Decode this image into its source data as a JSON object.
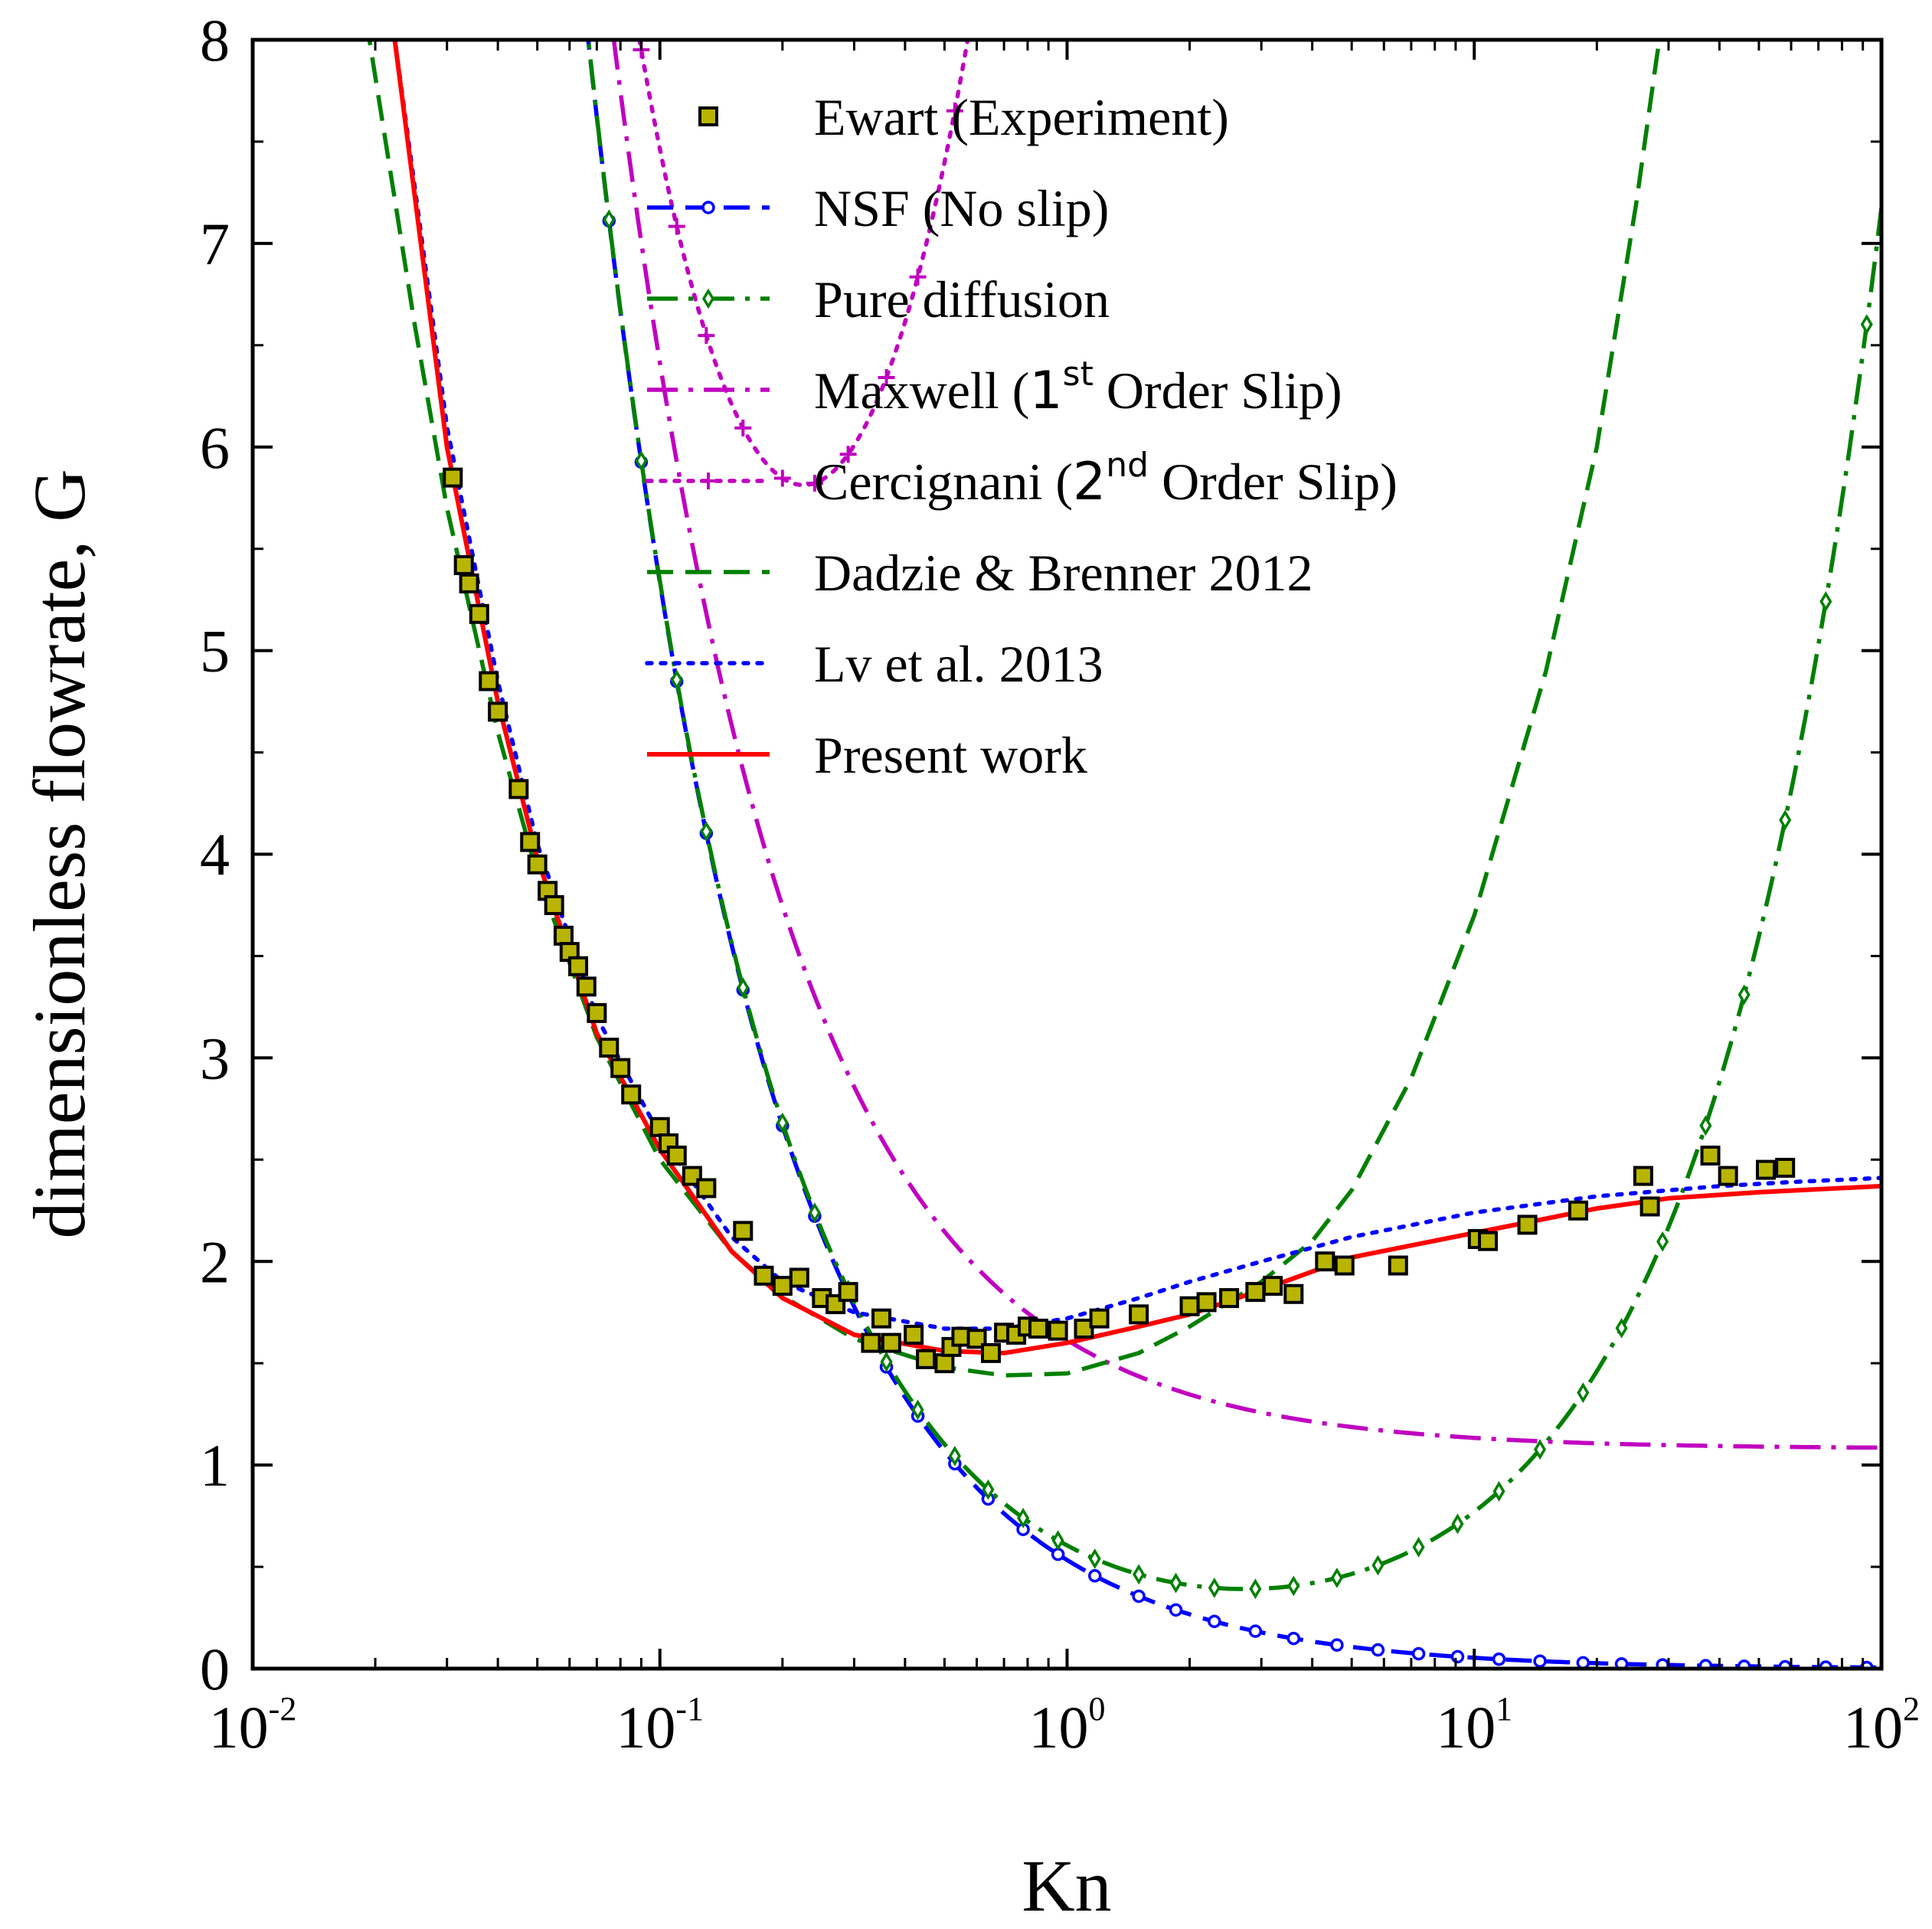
{
  "chart_data": {
    "type": "line",
    "x_scale": "log",
    "xlabel": "Kn",
    "ylabel": "dimensionless flowrate, G",
    "xlim": [
      0.01,
      100
    ],
    "ylim": [
      0,
      8
    ],
    "x_ticks": [
      {
        "value": 0.01,
        "base": "10",
        "exp": "-2"
      },
      {
        "value": 0.1,
        "base": "10",
        "exp": "-1"
      },
      {
        "value": 1,
        "base": "10",
        "exp": "0"
      },
      {
        "value": 10,
        "base": "10",
        "exp": "1"
      },
      {
        "value": 100,
        "base": "10",
        "exp": "2"
      }
    ],
    "y_ticks": [
      {
        "value": 0,
        "label": "0"
      },
      {
        "value": 1,
        "label": "1"
      },
      {
        "value": 2,
        "label": "2"
      },
      {
        "value": 3,
        "label": "3"
      },
      {
        "value": 4,
        "label": "4"
      },
      {
        "value": 5,
        "label": "5"
      },
      {
        "value": 6,
        "label": "6"
      },
      {
        "value": 7,
        "label": "7"
      },
      {
        "value": 8,
        "label": "8"
      }
    ],
    "legend_position": "top-center",
    "series": [
      {
        "name": "Ewart (Experiment)",
        "style": "markers",
        "marker": "square",
        "color": "#b8b400",
        "edge": "#000000",
        "points": [
          [
            0.031,
            5.85
          ],
          [
            0.033,
            5.42
          ],
          [
            0.034,
            5.33
          ],
          [
            0.036,
            5.18
          ],
          [
            0.038,
            4.85
          ],
          [
            0.04,
            4.7
          ],
          [
            0.045,
            4.32
          ],
          [
            0.048,
            4.06
          ],
          [
            0.05,
            3.95
          ],
          [
            0.053,
            3.82
          ],
          [
            0.055,
            3.75
          ],
          [
            0.058,
            3.6
          ],
          [
            0.06,
            3.52
          ],
          [
            0.063,
            3.45
          ],
          [
            0.066,
            3.35
          ],
          [
            0.07,
            3.22
          ],
          [
            0.075,
            3.05
          ],
          [
            0.08,
            2.95
          ],
          [
            0.085,
            2.82
          ],
          [
            0.1,
            2.66
          ],
          [
            0.105,
            2.58
          ],
          [
            0.11,
            2.52
          ],
          [
            0.12,
            2.42
          ],
          [
            0.13,
            2.36
          ],
          [
            0.16,
            2.15
          ],
          [
            0.18,
            1.93
          ],
          [
            0.2,
            1.88
          ],
          [
            0.22,
            1.92
          ],
          [
            0.25,
            1.82
          ],
          [
            0.27,
            1.79
          ],
          [
            0.29,
            1.85
          ],
          [
            0.33,
            1.6
          ],
          [
            0.35,
            1.72
          ],
          [
            0.37,
            1.6
          ],
          [
            0.42,
            1.64
          ],
          [
            0.45,
            1.52
          ],
          [
            0.5,
            1.5
          ],
          [
            0.52,
            1.58
          ],
          [
            0.55,
            1.63
          ],
          [
            0.6,
            1.62
          ],
          [
            0.65,
            1.55
          ],
          [
            0.7,
            1.65
          ],
          [
            0.75,
            1.64
          ],
          [
            0.8,
            1.68
          ],
          [
            0.85,
            1.67
          ],
          [
            0.95,
            1.66
          ],
          [
            1.1,
            1.67
          ],
          [
            1.2,
            1.72
          ],
          [
            1.5,
            1.74
          ],
          [
            2.0,
            1.78
          ],
          [
            2.2,
            1.8
          ],
          [
            2.5,
            1.82
          ],
          [
            2.9,
            1.85
          ],
          [
            3.2,
            1.88
          ],
          [
            3.6,
            1.84
          ],
          [
            4.3,
            2.0
          ],
          [
            4.8,
            1.98
          ],
          [
            6.5,
            1.98
          ],
          [
            10.2,
            2.11
          ],
          [
            10.8,
            2.1
          ],
          [
            13.5,
            2.18
          ],
          [
            18,
            2.25
          ],
          [
            26,
            2.42
          ],
          [
            27,
            2.27
          ],
          [
            38,
            2.52
          ],
          [
            42,
            2.42
          ],
          [
            52,
            2.45
          ],
          [
            58,
            2.46
          ]
        ]
      },
      {
        "name": "NSF (No slip)",
        "style": "dashed-markers",
        "marker": "circle",
        "color": "#0000ff",
        "formula": "8/(15 Kn)",
        "marker_x": [
          0.019,
          0.023,
          0.028,
          0.034,
          0.041,
          0.05,
          0.06,
          0.075,
          0.09,
          0.11,
          0.13,
          0.16,
          0.2,
          0.24,
          0.29,
          0.36,
          0.43,
          0.53,
          0.64,
          0.78,
          0.95,
          1.17,
          1.5,
          1.85,
          2.3,
          2.9,
          3.6,
          4.6,
          5.8,
          7.3,
          9.1,
          11.5,
          14.5,
          18.5,
          23,
          29,
          37,
          46,
          58,
          73,
          92
        ]
      },
      {
        "name": "Pure diffusion",
        "style": "dashdot-markers",
        "marker": "diamond",
        "color": "#008000",
        "formula": "8/(15 Kn) + 0.0717 Kn",
        "marker_x": [
          0.019,
          0.023,
          0.028,
          0.034,
          0.041,
          0.05,
          0.06,
          0.075,
          0.09,
          0.11,
          0.13,
          0.16,
          0.2,
          0.24,
          0.29,
          0.36,
          0.43,
          0.53,
          0.64,
          0.78,
          0.95,
          1.17,
          1.5,
          1.85,
          2.3,
          2.9,
          3.6,
          4.6,
          5.8,
          7.3,
          9.1,
          11.5,
          14.5,
          18.5,
          23,
          29,
          37,
          46,
          58,
          73,
          92
        ]
      },
      {
        "name": "Maxwell (1st Order Slip)",
        "label_parts": [
          "Maxwell (",
          "1",
          "st",
          " Order Slip)"
        ],
        "style": "dashdot",
        "color": "#c000c0",
        "formula": "8/(15 Kn) + 1.08"
      },
      {
        "name": "Cercignani (2nd Order Slip)",
        "label_parts": [
          "Cercignani (",
          "2",
          "nd",
          " Order Slip)"
        ],
        "style": "dotted-markers",
        "marker": "plus",
        "color": "#c000c0",
        "formula": "8/(15 Kn) + 1.08 + 10.5 Kn",
        "marker_x": [
          0.023,
          0.028,
          0.034,
          0.041,
          0.05,
          0.06,
          0.075,
          0.09,
          0.11,
          0.13,
          0.16,
          0.2,
          0.24,
          0.29,
          0.36,
          0.43,
          0.53
        ]
      },
      {
        "name": "Dadzie & Brenner 2012",
        "style": "dashed",
        "color": "#008000",
        "points": [
          [
            0.019,
            8.1
          ],
          [
            0.025,
            6.6
          ],
          [
            0.03,
            5.7
          ],
          [
            0.04,
            4.6
          ],
          [
            0.05,
            3.9
          ],
          [
            0.07,
            3.1
          ],
          [
            0.1,
            2.5
          ],
          [
            0.15,
            2.05
          ],
          [
            0.2,
            1.83
          ],
          [
            0.3,
            1.62
          ],
          [
            0.5,
            1.48
          ],
          [
            0.7,
            1.44
          ],
          [
            1,
            1.45
          ],
          [
            1.5,
            1.55
          ],
          [
            2,
            1.68
          ],
          [
            3,
            1.9
          ],
          [
            4,
            2.1
          ],
          [
            5,
            2.35
          ],
          [
            7,
            2.9
          ],
          [
            10,
            3.7
          ],
          [
            15,
            4.9
          ],
          [
            20,
            6.0
          ],
          [
            25,
            7.2
          ],
          [
            28,
            7.9
          ],
          [
            30,
            8.3
          ]
        ]
      },
      {
        "name": "Lv et al. 2013",
        "style": "dotted",
        "color": "#0000ff",
        "points": [
          [
            0.022,
            8.1
          ],
          [
            0.03,
            6.1
          ],
          [
            0.04,
            4.85
          ],
          [
            0.05,
            4.05
          ],
          [
            0.07,
            3.2
          ],
          [
            0.1,
            2.62
          ],
          [
            0.15,
            2.12
          ],
          [
            0.2,
            1.9
          ],
          [
            0.3,
            1.75
          ],
          [
            0.5,
            1.67
          ],
          [
            0.7,
            1.67
          ],
          [
            1,
            1.72
          ],
          [
            1.5,
            1.82
          ],
          [
            2,
            1.9
          ],
          [
            3,
            2.0
          ],
          [
            5,
            2.12
          ],
          [
            10,
            2.24
          ],
          [
            20,
            2.32
          ],
          [
            40,
            2.37
          ],
          [
            60,
            2.39
          ],
          [
            100,
            2.41
          ]
        ]
      },
      {
        "name": "Present work",
        "style": "solid",
        "color": "#ff0000",
        "points": [
          [
            0.022,
            8.1
          ],
          [
            0.03,
            6.0
          ],
          [
            0.04,
            4.75
          ],
          [
            0.05,
            3.98
          ],
          [
            0.07,
            3.12
          ],
          [
            0.1,
            2.55
          ],
          [
            0.15,
            2.05
          ],
          [
            0.2,
            1.82
          ],
          [
            0.3,
            1.64
          ],
          [
            0.5,
            1.56
          ],
          [
            0.7,
            1.55
          ],
          [
            1,
            1.6
          ],
          [
            1.5,
            1.68
          ],
          [
            2,
            1.74
          ],
          [
            3,
            1.86
          ],
          [
            5,
            2.02
          ],
          [
            10,
            2.14
          ],
          [
            20,
            2.26
          ],
          [
            30,
            2.31
          ],
          [
            50,
            2.34
          ],
          [
            100,
            2.37
          ]
        ]
      }
    ]
  }
}
